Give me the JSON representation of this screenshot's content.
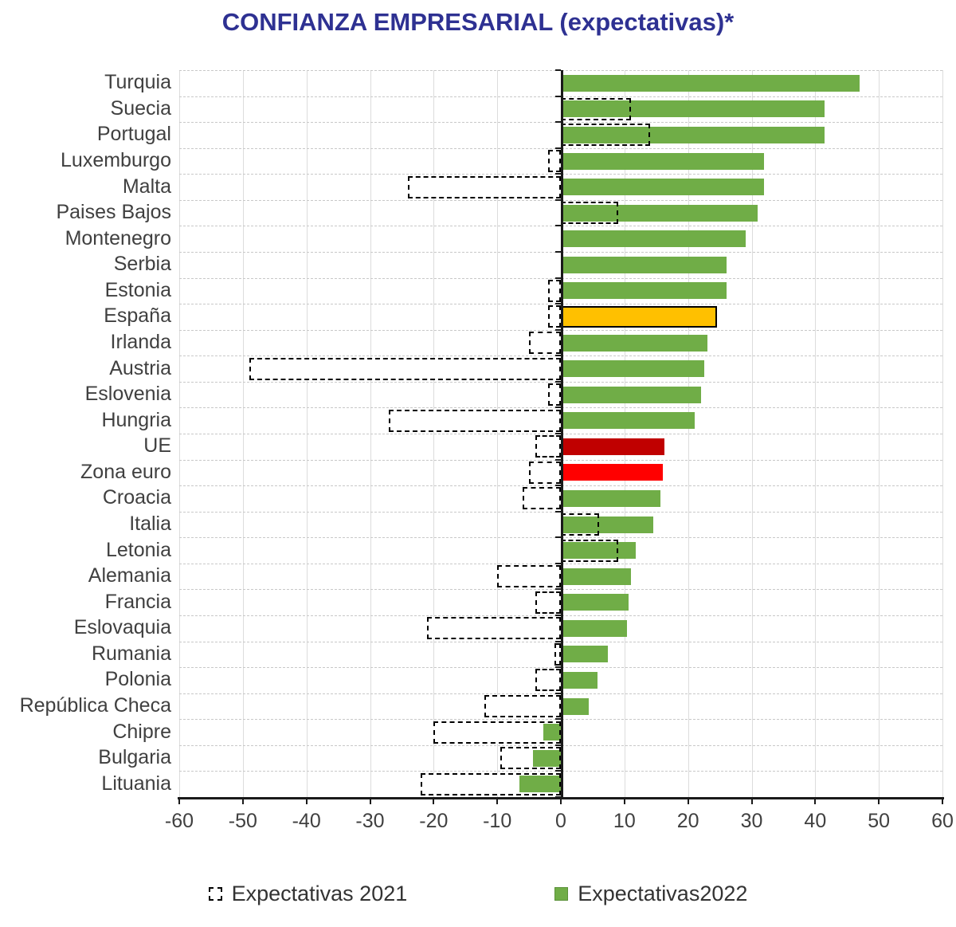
{
  "title": "CONFIANZA EMPRESARIAL (expectativas)*",
  "colors": {
    "title_text": "#2E3192",
    "bar_green": "#70AD47",
    "bar_orange_espana": "#FFC000",
    "bar_darkred_ue": "#C00000",
    "bar_red_zona_euro": "#FF0000",
    "dashed_outline": "#000000",
    "axis": "#1a1a1a",
    "gridline": "#DCDCDC"
  },
  "chart_data": {
    "type": "bar",
    "orientation": "horizontal",
    "title": "CONFIANZA EMPRESARIAL (expectativas)*",
    "xlabel": "",
    "ylabel": "",
    "xlim": [
      -60,
      60
    ],
    "x_ticks": [
      -60,
      -50,
      -40,
      -30,
      -20,
      -10,
      0,
      10,
      20,
      30,
      40,
      50,
      60
    ],
    "grid": true,
    "legend_position": "bottom",
    "categories": [
      "Turquia",
      "Suecia",
      "Portugal",
      "Luxemburgo",
      "Malta",
      "Paises Bajos",
      "Montenegro",
      "Serbia",
      "Estonia",
      "España",
      "Irlanda",
      "Austria",
      "Eslovenia",
      "Hungria",
      "UE",
      "Zona euro",
      "Croacia",
      "Italia",
      "Letonia",
      "Alemania",
      "Francia",
      "Eslovaquia",
      "Rumania",
      "Polonia",
      "República Checa",
      "Chipre",
      "Bulgaria",
      "Lituania"
    ],
    "series": [
      {
        "name": "Expectativas 2021",
        "style": "white-fill-black-dashed-outline",
        "values": [
          null,
          11,
          14,
          -2,
          -24,
          9,
          null,
          null,
          -2,
          -2,
          -5,
          -49,
          -2,
          -27,
          -4,
          -5,
          -6,
          6,
          9,
          -10,
          -4,
          -21,
          -1,
          -4,
          -12,
          -20,
          -9.5,
          -22
        ]
      },
      {
        "name": "Expectativas2022",
        "style": "solid-fill",
        "default_color": "#70AD47",
        "values": [
          47,
          41.5,
          41.5,
          32,
          32,
          31,
          29,
          26,
          26,
          24.5,
          23,
          22.5,
          22,
          21,
          16.3,
          16,
          15.7,
          14.5,
          11.8,
          11,
          10.7,
          10.4,
          7.4,
          5.8,
          4.4,
          -2.7,
          -4.4,
          -6.5
        ]
      }
    ],
    "bar_overrides": [
      {
        "category": "España",
        "color": "#FFC000",
        "border": "#000000"
      },
      {
        "category": "UE",
        "color": "#C00000"
      },
      {
        "category": "Zona euro",
        "color": "#FF0000"
      }
    ]
  }
}
